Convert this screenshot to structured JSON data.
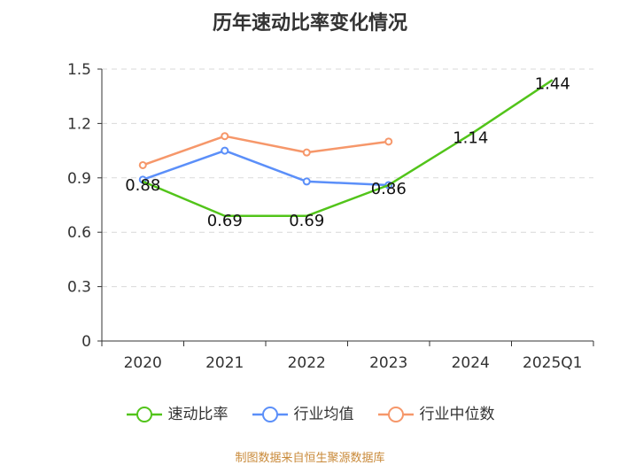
{
  "chart_data": {
    "type": "line",
    "title": "历年速动比率变化情况",
    "categories": [
      "2020",
      "2021",
      "2022",
      "2023",
      "2024",
      "2025Q1"
    ],
    "ylim": [
      0,
      1.5
    ],
    "yticks": [
      "0",
      "0.3",
      "0.6",
      "0.9",
      "1.2",
      "1.5"
    ],
    "grid": true,
    "legend_position": "bottom",
    "series": [
      {
        "name": "速动比率",
        "color": "#52c41a",
        "values": [
          0.88,
          0.69,
          0.69,
          0.86,
          1.14,
          1.44
        ],
        "labels": [
          "0.88",
          "0.69",
          "0.69",
          "0.86",
          "1.14",
          "1.44"
        ]
      },
      {
        "name": "行业均值",
        "color": "#5b8ff9",
        "values": [
          0.89,
          1.05,
          0.88,
          0.86,
          null,
          null
        ]
      },
      {
        "name": "行业中位数",
        "color": "#f6976a",
        "values": [
          0.97,
          1.13,
          1.04,
          1.1,
          null,
          null
        ]
      }
    ]
  },
  "source": "制图数据来自恒生聚源数据库"
}
